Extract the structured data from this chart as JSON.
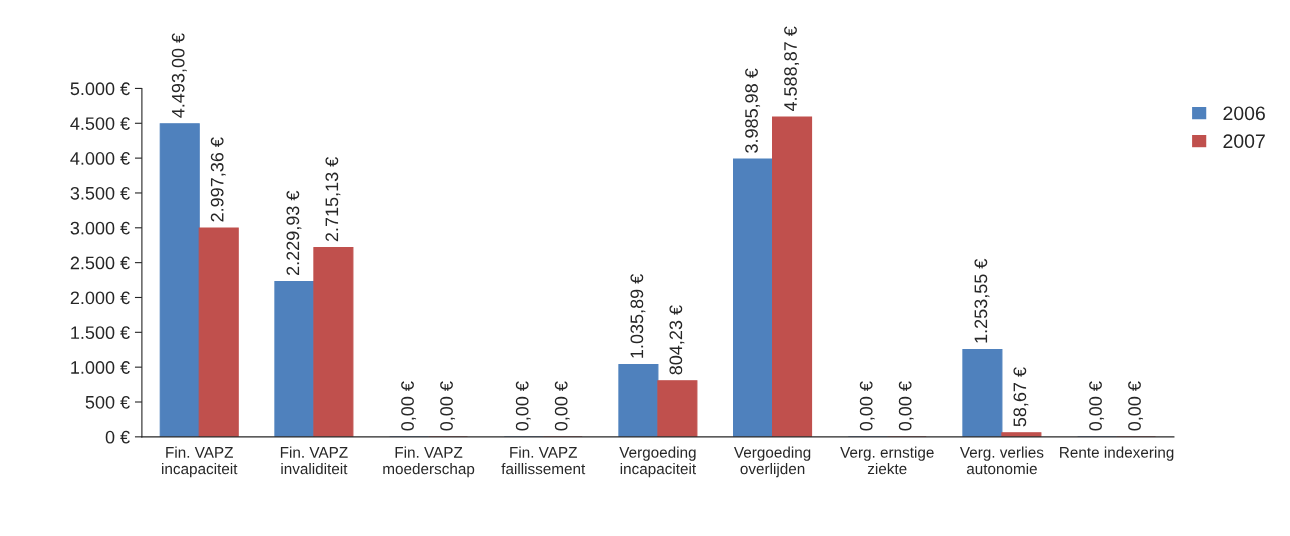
{
  "chart_data": {
    "type": "bar",
    "categories": [
      "Fin. VAPZ\nincapaciteit",
      "Fin. VAPZ\ninvaliditeit",
      "Fin. VAPZ\nmoederschap",
      "Fin. VAPZ\nfaillissement",
      "Vergoeding\nincapaciteit",
      "Vergoeding\noverlijden",
      "Verg. ernstige\nziekte",
      "Verg. verlies\nautonomie",
      "Rente indexering"
    ],
    "series": [
      {
        "name": "2006",
        "color": "#4f81bd",
        "values": [
          4493.0,
          2229.93,
          0,
          0,
          1035.89,
          3985.98,
          0,
          1253.55,
          0
        ],
        "value_labels": [
          "4.493,00 €",
          "2.229,93 €",
          "0,00 €",
          "0,00 €",
          "1.035,89 €",
          "3.985,98 €",
          "0,00 €",
          "1.253,55 €",
          "0,00 €"
        ]
      },
      {
        "name": "2007",
        "color": "#c0504d",
        "values": [
          2997.36,
          2715.13,
          0,
          0,
          804.23,
          4588.87,
          0,
          58.67,
          0
        ],
        "value_labels": [
          "2.997,36 €",
          "2.715,13 €",
          "0,00 €",
          "0,00 €",
          "804,23 €",
          "4.588,87 €",
          "0,00 €",
          "58,67 €",
          "0,00 €"
        ]
      }
    ],
    "ylim": [
      0,
      5000
    ],
    "yticks": [
      {
        "value": 0,
        "label": "0 €"
      },
      {
        "value": 500,
        "label": "500 €"
      },
      {
        "value": 1000,
        "label": "1.000 €"
      },
      {
        "value": 1500,
        "label": "1.500 €"
      },
      {
        "value": 2000,
        "label": "2.000 €"
      },
      {
        "value": 2500,
        "label": "2.500 €"
      },
      {
        "value": 3000,
        "label": "3.000 €"
      },
      {
        "value": 3500,
        "label": "3.500 €"
      },
      {
        "value": 4000,
        "label": "4.000 €"
      },
      {
        "value": 4500,
        "label": "4.500 €"
      },
      {
        "value": 5000,
        "label": "5.000 €"
      }
    ],
    "grid": false,
    "legend": "top right"
  }
}
